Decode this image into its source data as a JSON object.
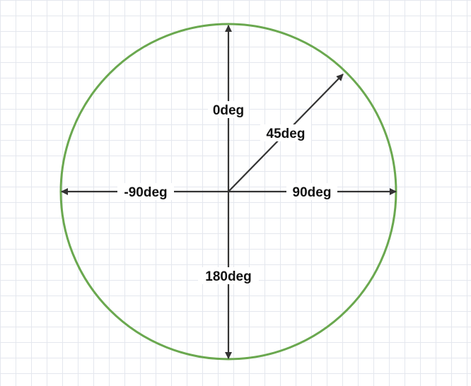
{
  "diagram": {
    "colors": {
      "circle": "#6aa84f",
      "arrow": "#333333",
      "text": "#111111",
      "grid": "#e4e7ee"
    },
    "labels": {
      "up": "0deg",
      "diag": "45deg",
      "left": "-90deg",
      "right": "90deg",
      "down": "180deg"
    }
  }
}
